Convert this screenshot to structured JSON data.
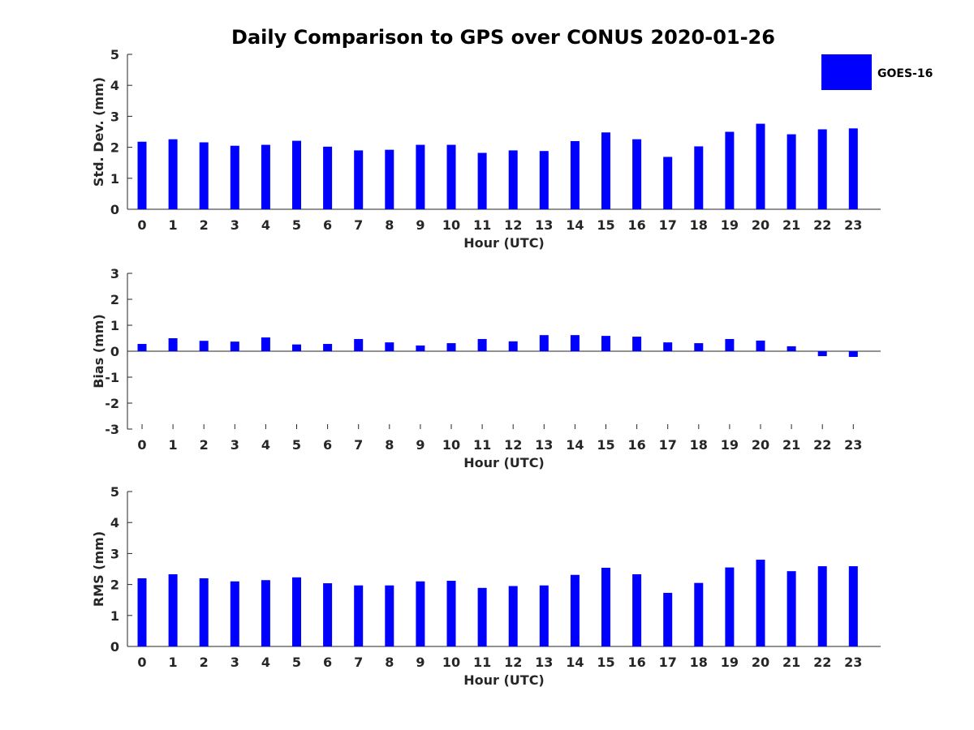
{
  "chart_title": "Daily Comparison to GPS over CONUS 2020-01-26",
  "legend": {
    "label": "GOES-16",
    "color": "#0000ff"
  },
  "chart_data": [
    {
      "type": "bar",
      "id": "std",
      "title": "Daily Comparison to GPS over CONUS 2020-01-26",
      "xlabel": "Hour (UTC)",
      "ylabel": "Std. Dev. (mm)",
      "ylim": [
        0,
        5
      ],
      "yticks": [
        0,
        1,
        2,
        3,
        4,
        5
      ],
      "categories": [
        "0",
        "1",
        "2",
        "3",
        "4",
        "5",
        "6",
        "7",
        "8",
        "9",
        "10",
        "11",
        "12",
        "13",
        "14",
        "15",
        "16",
        "17",
        "18",
        "19",
        "20",
        "21",
        "22",
        "23"
      ],
      "series": [
        {
          "name": "GOES-16",
          "color": "#0000ff",
          "values": [
            2.18,
            2.26,
            2.16,
            2.05,
            2.08,
            2.21,
            2.02,
            1.9,
            1.92,
            2.08,
            2.08,
            1.82,
            1.9,
            1.88,
            2.2,
            2.48,
            2.26,
            1.69,
            2.03,
            2.5,
            2.76,
            2.42,
            2.58,
            2.61
          ]
        }
      ]
    },
    {
      "type": "bar",
      "id": "bias",
      "xlabel": "Hour (UTC)",
      "ylabel": "Bias (mm)",
      "ylim": [
        -3,
        3
      ],
      "yticks": [
        -3,
        -2,
        -1,
        0,
        1,
        2,
        3
      ],
      "categories": [
        "0",
        "1",
        "2",
        "3",
        "4",
        "5",
        "6",
        "7",
        "8",
        "9",
        "10",
        "11",
        "12",
        "13",
        "14",
        "15",
        "16",
        "17",
        "18",
        "19",
        "20",
        "21",
        "22",
        "23"
      ],
      "series": [
        {
          "name": "GOES-16",
          "color": "#0000ff",
          "values": [
            0.28,
            0.5,
            0.4,
            0.37,
            0.53,
            0.26,
            0.28,
            0.47,
            0.34,
            0.22,
            0.31,
            0.47,
            0.38,
            0.62,
            0.62,
            0.59,
            0.56,
            0.34,
            0.31,
            0.47,
            0.41,
            0.19,
            -0.19,
            -0.22
          ]
        }
      ]
    },
    {
      "type": "bar",
      "id": "rms",
      "xlabel": "Hour (UTC)",
      "ylabel": "RMS (mm)",
      "ylim": [
        0,
        5
      ],
      "yticks": [
        0,
        1,
        2,
        3,
        4,
        5
      ],
      "categories": [
        "0",
        "1",
        "2",
        "3",
        "4",
        "5",
        "6",
        "7",
        "8",
        "9",
        "10",
        "11",
        "12",
        "13",
        "14",
        "15",
        "16",
        "17",
        "18",
        "19",
        "20",
        "21",
        "22",
        "23"
      ],
      "series": [
        {
          "name": "GOES-16",
          "color": "#0000ff",
          "values": [
            2.2,
            2.33,
            2.2,
            2.1,
            2.14,
            2.23,
            2.04,
            1.97,
            1.97,
            2.1,
            2.12,
            1.89,
            1.95,
            1.97,
            2.31,
            2.54,
            2.33,
            1.73,
            2.05,
            2.55,
            2.8,
            2.43,
            2.59,
            2.59
          ]
        }
      ]
    }
  ]
}
